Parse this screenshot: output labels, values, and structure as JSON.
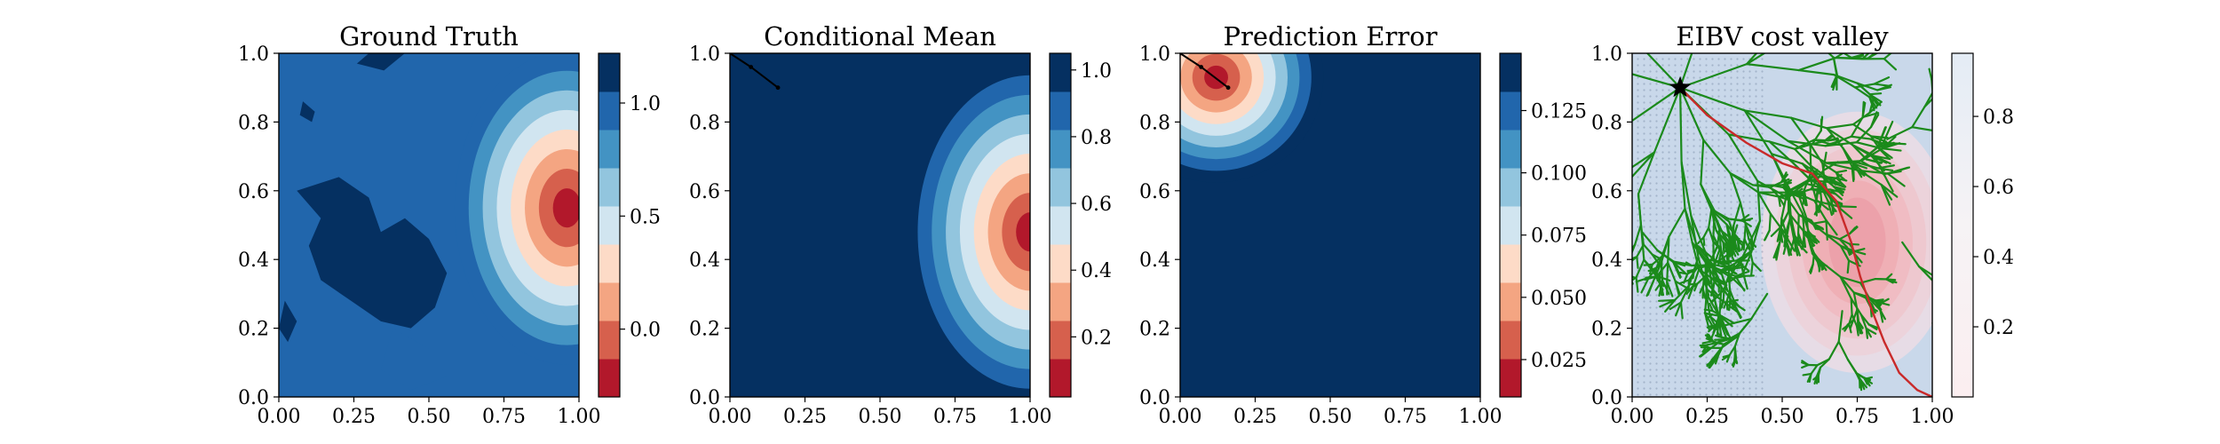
{
  "chart_data": [
    {
      "type": "heatmap",
      "title": "Ground Truth",
      "xlabel": "",
      "ylabel": "",
      "xlim": [
        0,
        1
      ],
      "ylim": [
        0,
        1
      ],
      "xticks": [
        "0.00",
        "0.25",
        "0.50",
        "0.75",
        "1.00"
      ],
      "yticks": [
        "0.0",
        "0.2",
        "0.4",
        "0.6",
        "0.8",
        "1.0"
      ],
      "colormap": "RdBu (9 discrete levels)",
      "colorbar": {
        "range": [
          -0.3,
          1.22
        ],
        "ticks": [
          "0.0",
          "0.5",
          "1.0"
        ],
        "tick_values": [
          0.0,
          0.5,
          1.0
        ]
      },
      "features": {
        "background_level": 1.05,
        "low_hotspot": {
          "center": [
            0.96,
            0.55
          ],
          "min_value": -0.3
        },
        "high_patches": "irregular dark-blue regions (~1.2) at left-center and top"
      }
    },
    {
      "type": "heatmap",
      "title": "Conditional Mean",
      "xlabel": "",
      "ylabel": "",
      "xlim": [
        0,
        1
      ],
      "ylim": [
        0,
        1
      ],
      "xticks": [
        "0.00",
        "0.25",
        "0.50",
        "0.75",
        "1.00"
      ],
      "yticks": [
        "0.0",
        "0.2",
        "0.4",
        "0.6",
        "0.8",
        "1.0"
      ],
      "colormap": "RdBu (9 discrete levels)",
      "colorbar": {
        "range": [
          0.02,
          1.05
        ],
        "ticks": [
          "0.2",
          "0.4",
          "0.6",
          "0.8",
          "1.0"
        ],
        "tick_values": [
          0.2,
          0.4,
          0.6,
          0.8,
          1.0
        ]
      },
      "features": {
        "background_level": 1.0,
        "low_hotspot": {
          "center": [
            1.0,
            0.48
          ],
          "min_value": 0.02
        },
        "path": [
          [
            0.0,
            1.0
          ],
          [
            0.07,
            0.96
          ],
          [
            0.16,
            0.9
          ]
        ]
      }
    },
    {
      "type": "heatmap",
      "title": "Prediction Error",
      "xlabel": "",
      "ylabel": "",
      "xlim": [
        0,
        1
      ],
      "ylim": [
        0,
        1
      ],
      "xticks": [
        "0.00",
        "0.25",
        "0.50",
        "0.75",
        "1.00"
      ],
      "yticks": [
        "0.0",
        "0.2",
        "0.4",
        "0.6",
        "0.8",
        "1.0"
      ],
      "colormap": "RdBu (9 discrete levels)",
      "colorbar": {
        "range": [
          0.01,
          0.148
        ],
        "ticks": [
          "0.025",
          "0.050",
          "0.075",
          "0.100",
          "0.125"
        ],
        "tick_values": [
          0.025,
          0.05,
          0.075,
          0.1,
          0.125
        ]
      },
      "features": {
        "background_level": 0.148,
        "low_hotspot": {
          "center": [
            0.12,
            0.93
          ],
          "min_value": 0.01
        },
        "path": [
          [
            0.0,
            1.0
          ],
          [
            0.07,
            0.96
          ],
          [
            0.16,
            0.9
          ]
        ]
      }
    },
    {
      "type": "heatmap",
      "title": "EIBV cost valley",
      "xlabel": "",
      "ylabel": "",
      "xlim": [
        0,
        1
      ],
      "ylim": [
        0,
        1
      ],
      "xticks": [
        "0.00",
        "0.25",
        "0.50",
        "0.75",
        "1.00"
      ],
      "yticks": [
        "0.0",
        "0.2",
        "0.4",
        "0.6",
        "0.8",
        "1.0"
      ],
      "colormap": "RdBu (light range)",
      "colorbar": {
        "range": [
          0.0,
          0.98
        ],
        "ticks": [
          "0.2",
          "0.4",
          "0.6",
          "0.8"
        ],
        "tick_values": [
          0.2,
          0.4,
          0.6,
          0.8
        ]
      },
      "features": {
        "star": [
          0.16,
          0.9
        ],
        "valley_center": [
          0.75,
          0.45
        ],
        "tree": "RRT* tree (green branches) spanning the domain",
        "selected_path": [
          [
            0.16,
            0.9
          ],
          [
            0.25,
            0.82
          ],
          [
            0.38,
            0.74
          ],
          [
            0.5,
            0.68
          ],
          [
            0.6,
            0.65
          ],
          [
            0.68,
            0.57
          ],
          [
            0.73,
            0.45
          ],
          [
            0.76,
            0.35
          ],
          [
            0.8,
            0.25
          ],
          [
            0.84,
            0.16
          ],
          [
            0.89,
            0.07
          ],
          [
            0.95,
            0.02
          ],
          [
            1.0,
            0.0
          ]
        ]
      }
    }
  ]
}
